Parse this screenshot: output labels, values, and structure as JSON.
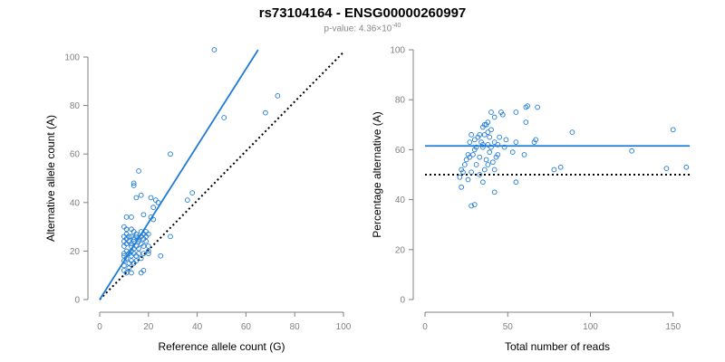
{
  "title": "rs73104164 - ENSG00000260997",
  "subtitle": {
    "prefix": "p-value: 4.36×10",
    "exponent": "-40"
  },
  "colors": {
    "points": "#1f7bd6",
    "fit": "#1f7bd6",
    "reference": "#000000",
    "axis": "#808080"
  },
  "chart_data": [
    {
      "type": "scatter",
      "xlabel": "Reference allele count (G)",
      "ylabel": "Alternative allele count (A)",
      "xlim": [
        0,
        100
      ],
      "ylim": [
        0,
        100
      ],
      "xticks": [
        0,
        20,
        40,
        60,
        80,
        100
      ],
      "yticks": [
        0,
        20,
        40,
        60,
        80,
        100
      ],
      "grid": false,
      "fit_line": {
        "style": "solid",
        "x": [
          0,
          65
        ],
        "y": [
          0,
          103
        ]
      },
      "reference_line": {
        "style": "dotted",
        "x": [
          0,
          100
        ],
        "y": [
          0,
          102
        ]
      },
      "points": [
        [
          47,
          103
        ],
        [
          73,
          84
        ],
        [
          68,
          77
        ],
        [
          51,
          75
        ],
        [
          29,
          60
        ],
        [
          16,
          53
        ],
        [
          14,
          48
        ],
        [
          14,
          47
        ],
        [
          38,
          44
        ],
        [
          17,
          43
        ],
        [
          21,
          42
        ],
        [
          15,
          42
        ],
        [
          23,
          41
        ],
        [
          24,
          40
        ],
        [
          22,
          38
        ],
        [
          36,
          41
        ],
        [
          18,
          35
        ],
        [
          11,
          34
        ],
        [
          13,
          34
        ],
        [
          21,
          34
        ],
        [
          22,
          33
        ],
        [
          10,
          30
        ],
        [
          11,
          29
        ],
        [
          13,
          29
        ],
        [
          14,
          28
        ],
        [
          17,
          28
        ],
        [
          19,
          28
        ],
        [
          11,
          27
        ],
        [
          15,
          27
        ],
        [
          18,
          27
        ],
        [
          20,
          27
        ],
        [
          10,
          26
        ],
        [
          12,
          26
        ],
        [
          13,
          26
        ],
        [
          15,
          26
        ],
        [
          17,
          26
        ],
        [
          19,
          26
        ],
        [
          29,
          26
        ],
        [
          11,
          25
        ],
        [
          14,
          25
        ],
        [
          16,
          25
        ],
        [
          18,
          25
        ],
        [
          10,
          24
        ],
        [
          12,
          24
        ],
        [
          14,
          24
        ],
        [
          16,
          24
        ],
        [
          19,
          24
        ],
        [
          11,
          23
        ],
        [
          13,
          23
        ],
        [
          17,
          23
        ],
        [
          10,
          22
        ],
        [
          13,
          22
        ],
        [
          15,
          22
        ],
        [
          18,
          22
        ],
        [
          20,
          22
        ],
        [
          14,
          21
        ],
        [
          16,
          21
        ],
        [
          11,
          20
        ],
        [
          13,
          20
        ],
        [
          20,
          20
        ],
        [
          10,
          19
        ],
        [
          12,
          19
        ],
        [
          14,
          19
        ],
        [
          16,
          19
        ],
        [
          18,
          19
        ],
        [
          20,
          19
        ],
        [
          10,
          18
        ],
        [
          13,
          18
        ],
        [
          15,
          18
        ],
        [
          25,
          18
        ],
        [
          11,
          17
        ],
        [
          17,
          17
        ],
        [
          10,
          16
        ],
        [
          13,
          16
        ],
        [
          15,
          16
        ],
        [
          12,
          15
        ],
        [
          14,
          15
        ],
        [
          10,
          14
        ],
        [
          12,
          13
        ],
        [
          10,
          12
        ],
        [
          18,
          12
        ],
        [
          11,
          11
        ],
        [
          13,
          11
        ],
        [
          17,
          11
        ]
      ]
    },
    {
      "type": "scatter",
      "xlabel": "Total number of reads",
      "ylabel": "Percentage alternative (A)",
      "xlim": [
        0,
        160
      ],
      "ylim": [
        0,
        100
      ],
      "xticks": [
        0,
        50,
        100,
        150
      ],
      "yticks": [
        0,
        20,
        40,
        60,
        80,
        100
      ],
      "grid": false,
      "fit_line": {
        "style": "solid",
        "x": [
          0,
          160
        ],
        "y": [
          61.5,
          61.5
        ]
      },
      "reference_line": {
        "style": "dotted",
        "x": [
          0,
          160
        ],
        "y": [
          50,
          50
        ]
      },
      "points": [
        [
          62,
          77.5
        ],
        [
          61,
          77
        ],
        [
          68,
          77
        ],
        [
          55,
          75
        ],
        [
          40,
          75
        ],
        [
          46,
          75
        ],
        [
          47,
          74
        ],
        [
          42,
          73
        ],
        [
          38,
          71
        ],
        [
          61,
          71
        ],
        [
          36,
          70
        ],
        [
          37,
          70
        ],
        [
          35,
          69
        ],
        [
          40,
          68
        ],
        [
          38,
          67
        ],
        [
          33,
          66
        ],
        [
          89,
          67
        ],
        [
          28,
          66
        ],
        [
          36,
          66
        ],
        [
          32,
          65
        ],
        [
          39,
          65
        ],
        [
          45,
          65
        ],
        [
          30,
          64
        ],
        [
          49,
          64
        ],
        [
          67,
          64
        ],
        [
          150,
          68
        ],
        [
          27,
          63
        ],
        [
          34,
          63
        ],
        [
          42,
          63
        ],
        [
          55,
          63
        ],
        [
          66,
          63
        ],
        [
          35,
          62
        ],
        [
          38,
          62
        ],
        [
          44,
          62
        ],
        [
          31,
          61
        ],
        [
          35,
          61
        ],
        [
          40,
          61
        ],
        [
          48,
          61
        ],
        [
          30,
          60
        ],
        [
          39,
          59
        ],
        [
          53,
          59
        ],
        [
          26,
          58
        ],
        [
          29,
          58
        ],
        [
          44,
          58
        ],
        [
          60,
          58
        ],
        [
          27,
          57
        ],
        [
          33,
          57
        ],
        [
          43,
          57
        ],
        [
          25,
          56
        ],
        [
          37,
          56
        ],
        [
          41,
          55
        ],
        [
          24,
          54
        ],
        [
          31,
          54
        ],
        [
          38,
          54
        ],
        [
          158,
          53
        ],
        [
          82,
          53
        ],
        [
          22,
          52
        ],
        [
          36,
          52
        ],
        [
          42,
          52
        ],
        [
          146,
          52.5
        ],
        [
          78,
          52
        ],
        [
          23,
          51
        ],
        [
          28,
          51
        ],
        [
          33,
          50
        ],
        [
          21,
          49
        ],
        [
          26,
          48
        ],
        [
          35,
          47
        ],
        [
          55,
          47
        ],
        [
          22,
          45
        ],
        [
          42,
          43
        ],
        [
          30,
          38
        ],
        [
          28,
          37.5
        ],
        [
          125,
          59.5
        ]
      ]
    }
  ]
}
